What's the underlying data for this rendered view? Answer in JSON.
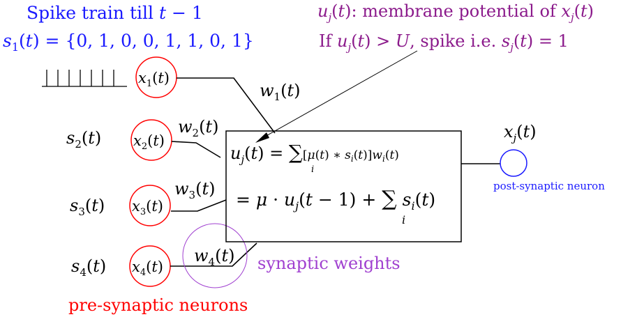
{
  "colors": {
    "blue": "#1a1aff",
    "purple": "#8b1a8b",
    "red": "#ff0000",
    "violet": "#a040d0",
    "black": "#000000"
  },
  "top_left": {
    "line1": "Spike train till t − 1",
    "line2": "s1(t) = {0, 1, 0, 0, 1, 1, 0, 1}"
  },
  "top_right": {
    "line1": "uj(t): membrane potential of xj(t)",
    "line2": "If uj(t) > U, spike i.e. sj(t) = 1"
  },
  "inputs": [
    {
      "signal": "",
      "neuron": "x1(t)",
      "weight": "w1(t)"
    },
    {
      "signal": "s2(t)",
      "neuron": "x2(t)",
      "weight": "w2(t)"
    },
    {
      "signal": "s3(t)",
      "neuron": "x3(t)",
      "weight": "w3(t)"
    },
    {
      "signal": "s4(t)",
      "neuron": "x4(t)",
      "weight": "w4(t)"
    }
  ],
  "box": {
    "eq1": "uj(t) = Σi[μ(t) ∗ si(t)]wi(t)",
    "eq2": "= μ · uj(t − 1) + Σi si(t)"
  },
  "output": {
    "neuron": "xj(t)",
    "label": "post-synaptic neuron"
  },
  "labels": {
    "synaptic_weights": "synaptic weights",
    "pre_synaptic": "pre-synaptic neurons"
  }
}
